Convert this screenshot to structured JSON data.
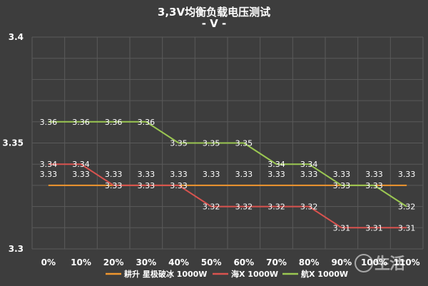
{
  "chart_data": {
    "type": "line",
    "title": "3,3V均衡负载电压测试",
    "subtitle": "- V -",
    "categories": [
      "0%",
      "10%",
      "20%",
      "30%",
      "40%",
      "50%",
      "60%",
      "70%",
      "80%",
      "90%",
      "100%",
      "110%"
    ],
    "ylim": [
      3.3,
      3.4
    ],
    "yticks": [
      "3.3",
      "3.35",
      "3.4"
    ],
    "grid": true,
    "legend_position": "bottom",
    "series": [
      {
        "name": "耕升 星极破冰 1000W",
        "color": "#f0962e",
        "values": [
          3.33,
          3.33,
          3.33,
          3.33,
          3.33,
          3.33,
          3.33,
          3.33,
          3.33,
          3.33,
          3.33,
          3.33
        ],
        "labels": [
          "3.33",
          "3.33",
          "3.33",
          "3.33",
          "3.33",
          "3.33",
          "3.33",
          "3.33",
          "3.33",
          "3.33",
          "3.33",
          "3.33"
        ]
      },
      {
        "name": "海X 1000W",
        "color": "#d9534f",
        "values": [
          3.34,
          3.34,
          3.33,
          3.33,
          3.33,
          3.32,
          3.32,
          3.32,
          3.32,
          3.31,
          3.31,
          3.31
        ],
        "labels": [
          "3.34",
          "3.34",
          "3.33",
          "3.33",
          "3.33",
          "3.32",
          "3.32",
          "3.32",
          "3.32",
          "3.31",
          "3.31",
          "3.31"
        ]
      },
      {
        "name": "航X 1000W",
        "color": "#9bc752",
        "values": [
          3.36,
          3.36,
          3.36,
          3.36,
          3.35,
          3.35,
          3.35,
          3.34,
          3.34,
          3.33,
          3.33,
          3.32
        ],
        "labels": [
          "3.36",
          "3.36",
          "3.36",
          "3.36",
          "3.35",
          "3.35",
          "3.35",
          "3.34",
          "3.34",
          "3.33",
          "3.33",
          "3.32"
        ]
      }
    ],
    "watermark": "生活"
  }
}
